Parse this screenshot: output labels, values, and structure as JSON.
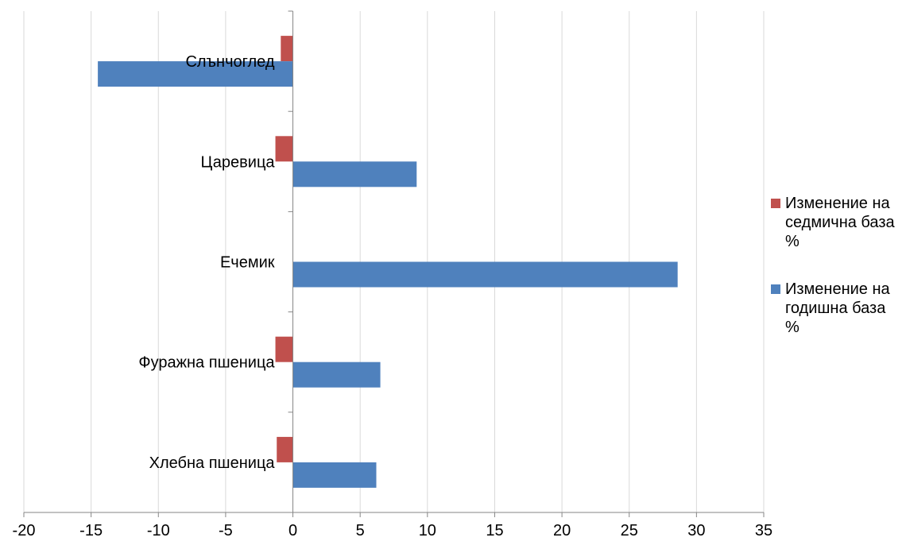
{
  "chart_data": {
    "type": "bar",
    "orientation": "horizontal",
    "categories": [
      "Хлебна пшеница",
      "Фуражна пшеница",
      "Ечемик",
      "Царевица",
      "Слънчоглед"
    ],
    "series": [
      {
        "name": "Изменение на годишна база %",
        "color": "#4F81BD",
        "values": [
          6.2,
          6.5,
          28.6,
          9.2,
          -14.5
        ]
      },
      {
        "name": "Изменение на седмична база %",
        "color": "#C0504D",
        "values": [
          -1.2,
          -1.3,
          0,
          -1.3,
          -0.9
        ]
      }
    ],
    "xlim": [
      -20,
      35
    ],
    "xticks": [
      "-20",
      "-15",
      "-10",
      "-5",
      "0",
      "5",
      "10",
      "15",
      "20",
      "25",
      "30",
      "35"
    ],
    "grid": true,
    "legend_position": "right",
    "title": "",
    "xlabel": "",
    "ylabel": ""
  },
  "legend": {
    "items": [
      {
        "label": "Изменение на седмична база %",
        "color": "#C0504D"
      },
      {
        "label": "Изменение на годишна база %",
        "color": "#4F81BD"
      }
    ]
  }
}
